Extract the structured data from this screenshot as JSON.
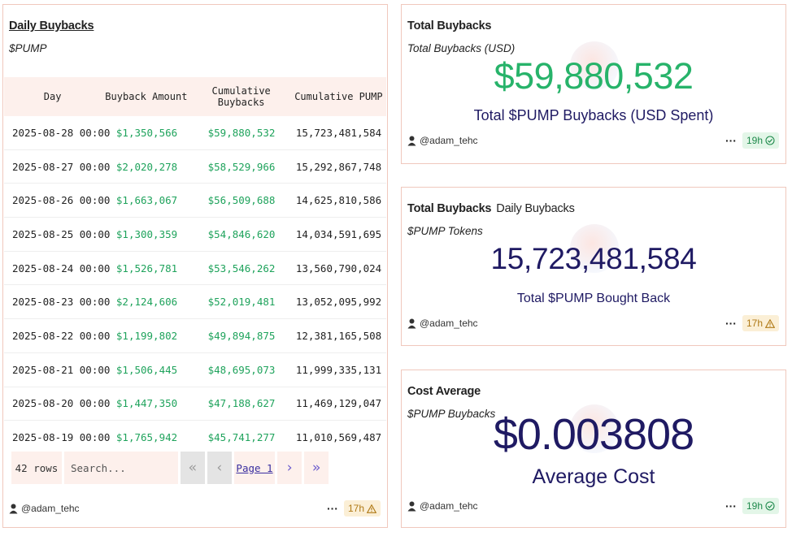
{
  "table_card": {
    "title": "Daily Buybacks",
    "subtitle": "$PUMP",
    "columns": [
      "Day",
      "Buyback Amount",
      "Cumulative Buybacks",
      "Cumulative PUMP"
    ],
    "rows": [
      [
        "2025-08-28 00:00",
        "$1,350,566",
        "$59,880,532",
        "15,723,481,584"
      ],
      [
        "2025-08-27 00:00",
        "$2,020,278",
        "$58,529,966",
        "15,292,867,748"
      ],
      [
        "2025-08-26 00:00",
        "$1,663,067",
        "$56,509,688",
        "14,625,810,586"
      ],
      [
        "2025-08-25 00:00",
        "$1,300,359",
        "$54,846,620",
        "14,034,591,695"
      ],
      [
        "2025-08-24 00:00",
        "$1,526,781",
        "$53,546,262",
        "13,560,790,024"
      ],
      [
        "2025-08-23 00:00",
        "$2,124,606",
        "$52,019,481",
        "13,052,095,992"
      ],
      [
        "2025-08-22 00:00",
        "$1,199,802",
        "$49,894,875",
        "12,381,165,508"
      ],
      [
        "2025-08-21 00:00",
        "$1,506,445",
        "$48,695,073",
        "11,999,335,131"
      ],
      [
        "2025-08-20 00:00",
        "$1,447,350",
        "$47,188,627",
        "11,469,129,047"
      ],
      [
        "2025-08-19 00:00",
        "$1,765,942",
        "$45,741,277",
        "11,010,569,487"
      ]
    ],
    "row_count": "42 rows",
    "search_placeholder": "Search...",
    "pager": {
      "first": "«",
      "prev": "‹",
      "page": "Page 1",
      "next": "›",
      "last": "»"
    },
    "author": "@adam_tehc",
    "more": "···",
    "age": "17h",
    "status": "warning"
  },
  "usd_card": {
    "title": "Total Buybacks",
    "subtitle": "Total Buybacks (USD)",
    "value": "$59,880,532",
    "caption": "Total $PUMP Buybacks (USD Spent)",
    "author": "@adam_tehc",
    "more": "···",
    "age": "19h",
    "status": "ok"
  },
  "tokens_card": {
    "title": "Total Buybacks",
    "tab2": "Daily Buybacks",
    "subtitle": "$PUMP Tokens",
    "value": "15,723,481,584",
    "caption": "Total $PUMP Bought Back",
    "author": "@adam_tehc",
    "more": "···",
    "age": "17h",
    "status": "warning"
  },
  "cost_card": {
    "title": "Cost Average",
    "subtitle": "$PUMP Buybacks",
    "value": "$0.003808",
    "caption": "Average Cost",
    "author": "@adam_tehc",
    "more": "···",
    "age": "19h",
    "status": "ok"
  },
  "colors": {
    "accent_green": "#27b36a",
    "value_navy": "#1f1a63",
    "card_border": "#f0c8bd",
    "header_bg": "#fdf0ec"
  }
}
